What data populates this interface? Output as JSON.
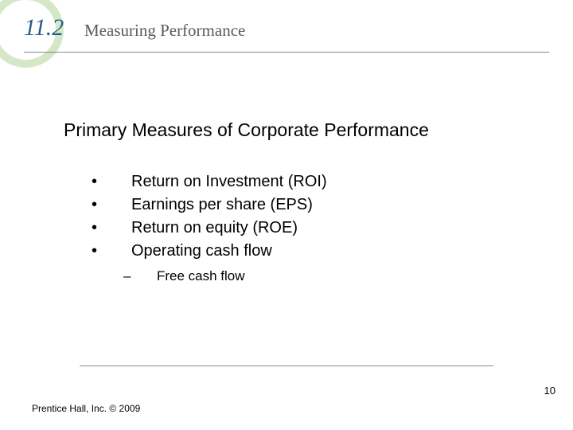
{
  "header": {
    "section_number": "11.2",
    "section_title": "Measuring Performance"
  },
  "content": {
    "title": "Primary Measures of Corporate Performance",
    "bullets": [
      "Return on Investment (ROI)",
      "Earnings per share (EPS)",
      "Return on equity (ROE)",
      "Operating cash flow"
    ],
    "sub_bullets": [
      "Free cash flow"
    ]
  },
  "footer": {
    "page_number": "10",
    "copyright": "Prentice Hall, Inc. © 2009"
  },
  "colors": {
    "circle": "#d4e8c8",
    "section_number": "#2a5a8a",
    "section_title": "#5a5a5a",
    "text": "#000000",
    "line": "#888888",
    "background": "#ffffff"
  }
}
